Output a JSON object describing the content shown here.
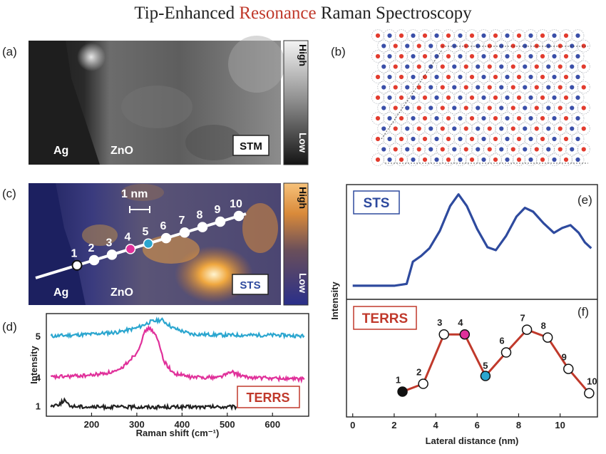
{
  "title": {
    "part1": "Tip-Enhanced ",
    "highlight": "Resonance",
    "part2": " Raman Spectroscopy",
    "highlight_color": "#c0392b"
  },
  "panels": {
    "a": "(a)",
    "b": "(b)",
    "c": "(c)",
    "d": "(d)",
    "e": "(e)",
    "f": "(f)"
  },
  "images": {
    "ag": "Ag",
    "zno": "ZnO",
    "stm": "STM",
    "sts": "STS",
    "scale": "1 nm",
    "colorbar_high": "High",
    "colorbar_low": "Low"
  },
  "colors": {
    "point1": "#111111",
    "point4": "#e0309a",
    "point5": "#2ba6cf",
    "sts_line": "#2e4a9e",
    "terrs_line": "#c0392b",
    "bg_spectrum": "#222222"
  },
  "line_points": [
    "1",
    "2",
    "3",
    "4",
    "5",
    "6",
    "7",
    "8",
    "9",
    "10"
  ],
  "chart_data": [
    {
      "panel": "d",
      "type": "line",
      "xlabel": "Raman shift (cm⁻¹)",
      "ylabel": "Intensity",
      "xlim": [
        100,
        680
      ],
      "xticks": [
        200,
        300,
        400,
        500,
        600
      ],
      "legend": "TERRS",
      "series": [
        {
          "name": "5",
          "x": [
            110,
            200,
            260,
            300,
            330,
            355,
            380,
            420,
            500,
            560,
            620,
            670
          ],
          "y": [
            0.78,
            0.8,
            0.82,
            0.86,
            0.92,
            0.94,
            0.86,
            0.8,
            0.79,
            0.79,
            0.79,
            0.78
          ]
        },
        {
          "name": "4",
          "x": [
            110,
            200,
            260,
            300,
            320,
            330,
            345,
            360,
            380,
            420,
            480,
            510,
            540,
            600,
            670
          ],
          "y": [
            0.38,
            0.4,
            0.44,
            0.62,
            0.84,
            0.86,
            0.76,
            0.54,
            0.42,
            0.38,
            0.38,
            0.43,
            0.38,
            0.37,
            0.36
          ]
        },
        {
          "name": "1",
          "x": [
            110,
            130,
            140,
            150,
            200,
            300,
            400,
            500,
            520
          ],
          "y": [
            0.1,
            0.12,
            0.16,
            0.1,
            0.09,
            0.09,
            0.09,
            0.09,
            0.09
          ]
        }
      ]
    },
    {
      "panel": "e",
      "type": "line",
      "legend": "STS",
      "xlim": [
        -0.3,
        11.8
      ],
      "series": [
        {
          "name": "STS",
          "x": [
            0,
            2.0,
            2.6,
            2.9,
            3.3,
            3.7,
            4.2,
            4.7,
            5.1,
            5.5,
            6.0,
            6.5,
            6.9,
            7.4,
            7.9,
            8.3,
            8.7,
            9.2,
            9.7,
            10.1,
            10.5,
            10.9,
            11.2,
            11.5
          ],
          "y": [
            0.03,
            0.03,
            0.05,
            0.28,
            0.34,
            0.42,
            0.6,
            0.86,
            0.98,
            0.86,
            0.62,
            0.43,
            0.4,
            0.55,
            0.75,
            0.84,
            0.8,
            0.68,
            0.58,
            0.63,
            0.66,
            0.58,
            0.48,
            0.42
          ]
        }
      ]
    },
    {
      "panel": "f",
      "type": "line",
      "xlabel": "Lateral distance (nm)",
      "ylabel": "Intensity",
      "legend": "TERRS",
      "xlim": [
        -0.3,
        11.8
      ],
      "xticks": [
        0,
        2,
        4,
        6,
        8,
        10
      ],
      "series": [
        {
          "name": "TERRS",
          "x": [
            2.4,
            3.4,
            4.4,
            5.4,
            6.4,
            7.4,
            8.4,
            9.4,
            10.4,
            11.4
          ],
          "y": [
            0.05,
            0.15,
            0.78,
            0.78,
            0.25,
            0.55,
            0.84,
            0.74,
            0.34,
            0.03
          ],
          "labels": [
            "1",
            "2",
            "3",
            "4",
            "5",
            "6",
            "7",
            "8",
            "9",
            "10"
          ]
        }
      ]
    }
  ]
}
